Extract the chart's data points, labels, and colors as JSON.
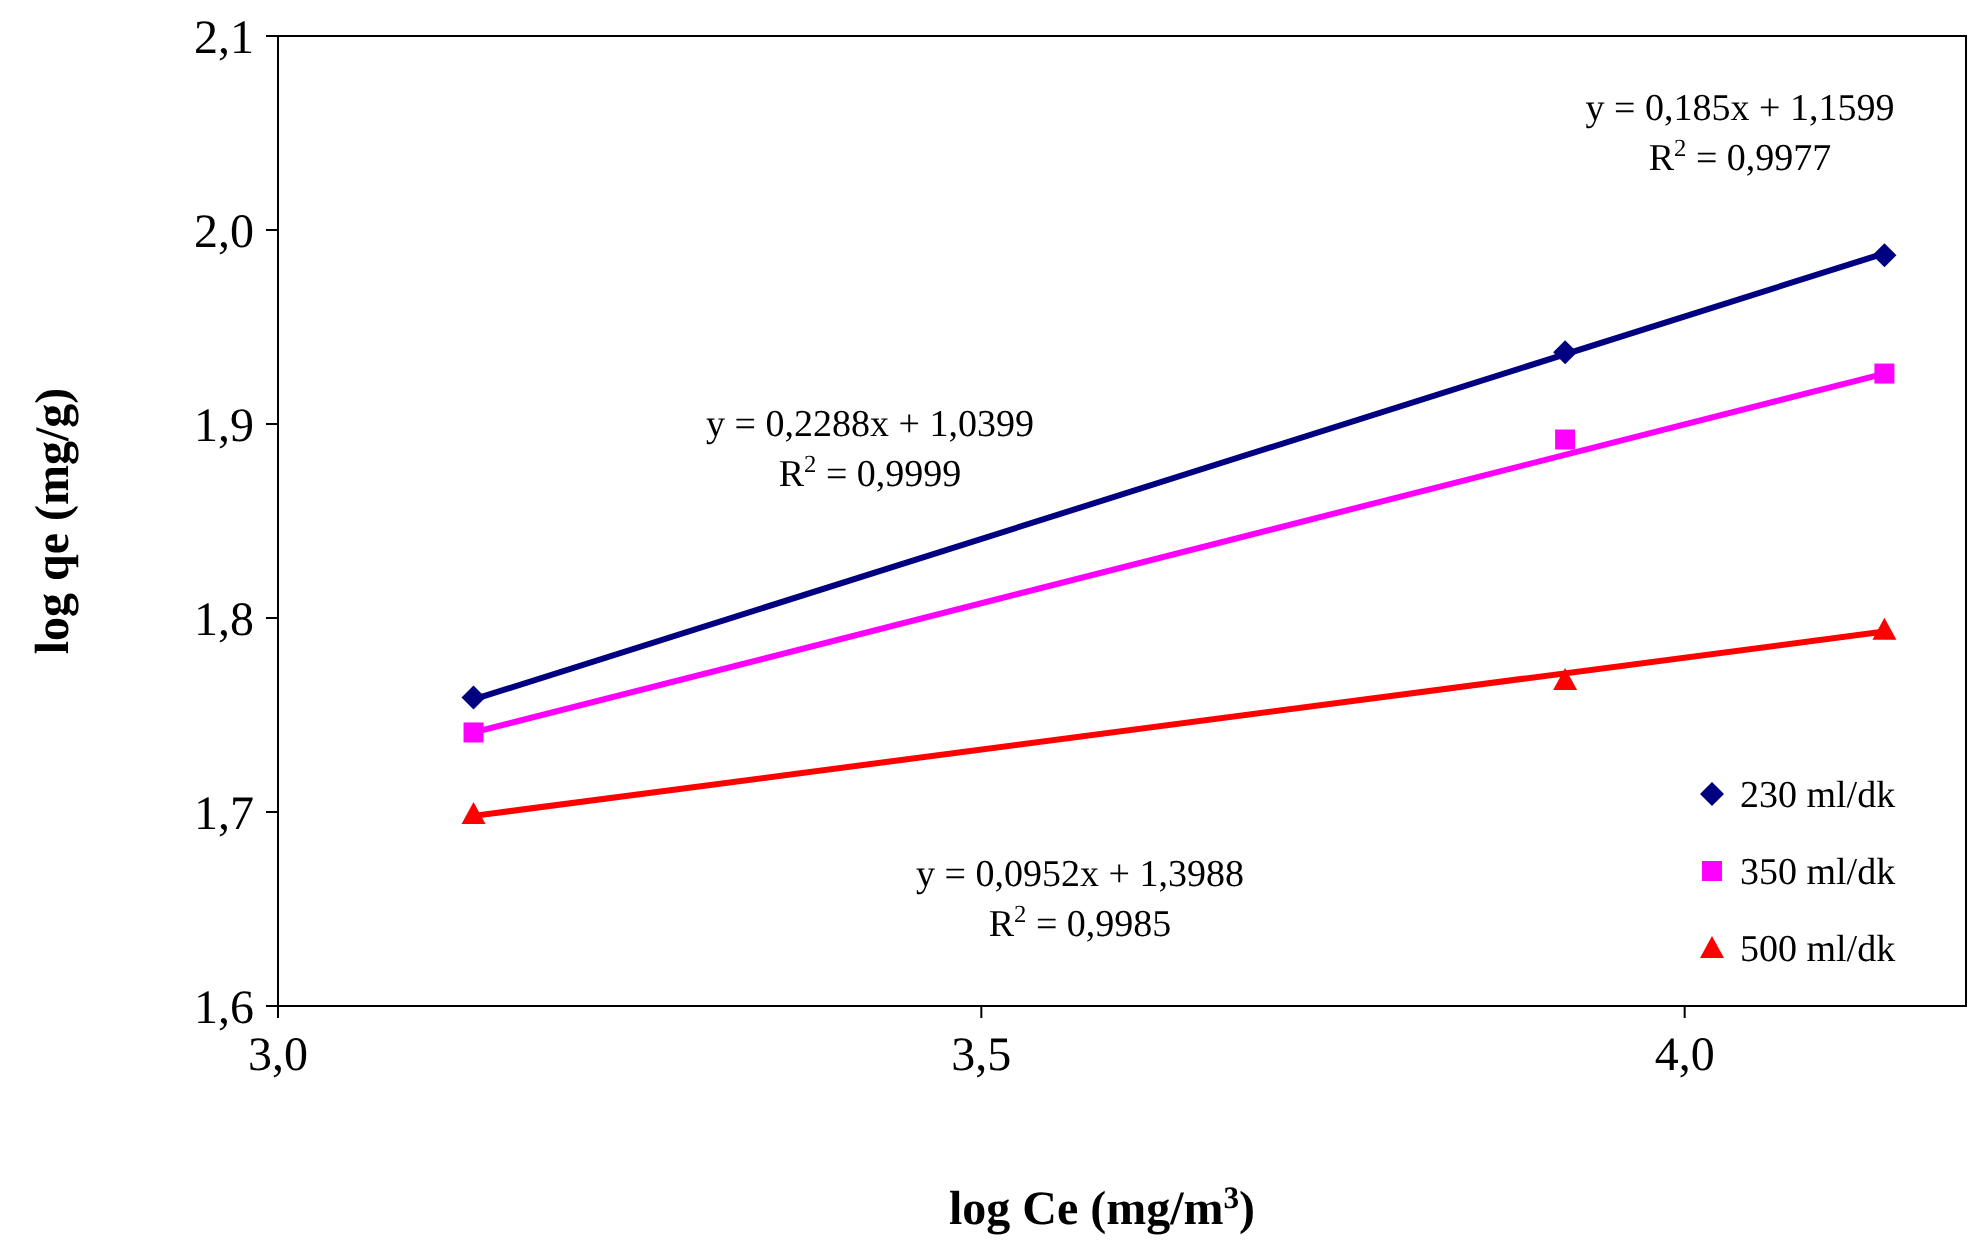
{
  "chart_data": {
    "type": "scatter",
    "xlabel": "log Ce (mg/m$^{3}$)",
    "ylabel": "log qe (mg/g)",
    "xlim": [
      3,
      4.2
    ],
    "ylim": [
      1.6,
      2.1
    ],
    "xticks": [
      {
        "value": 3,
        "label": "3,0"
      },
      {
        "value": 3.5,
        "label": "3,5"
      },
      {
        "value": 4,
        "label": "4,0"
      }
    ],
    "yticks": [
      {
        "value": 1.6,
        "label": "1,6"
      },
      {
        "value": 1.7,
        "label": "1,7"
      },
      {
        "value": 1.8,
        "label": "1,8"
      },
      {
        "value": 1.9,
        "label": "1,9"
      },
      {
        "value": 2.0,
        "label": "2,0"
      },
      {
        "value": 2.1,
        "label": "2,1"
      }
    ],
    "grid": false,
    "legend": "bottom right",
    "series": [
      {
        "type": "line",
        "color": "#000080",
        "marker": "none",
        "x": [
          3.139,
          4.142
        ],
        "values": [
          1.758,
          1.988
        ]
      },
      {
        "type": "line",
        "color": "#ff00ff",
        "marker": "none",
        "x": [
          3.139,
          4.142
        ],
        "values": [
          1.741,
          1.926
        ]
      },
      {
        "type": "line",
        "color": "#ff0000",
        "marker": "none",
        "x": [
          3.139,
          4.142
        ],
        "values": [
          1.698,
          1.793
        ]
      },
      {
        "name": "230 ml/dk",
        "color": "#000080",
        "marker": "diamond",
        "x": [
          3.139,
          3.915,
          4.142
        ],
        "values": [
          1.759,
          1.937,
          1.987
        ]
      },
      {
        "name": "350 ml/dk",
        "color": "#ff00ff",
        "marker": "square",
        "x": [
          3.139,
          3.915,
          4.142
        ],
        "values": [
          1.741,
          1.892,
          1.926
        ]
      },
      {
        "name": "500 ml/dk",
        "color": "#ff0000",
        "marker": "triangle",
        "x": [
          3.139,
          3.915,
          4.142
        ],
        "values": [
          1.699,
          1.768,
          1.794
        ]
      }
    ],
    "annotations": [
      "y = 0,185x + 1,1599\nR$^{2}$ = 0,9977",
      "y = 0,2288x + 1,0399\nR$^{2}$ = 0,9999",
      "y = 0,0952x + 1,3988\nR$^{2}$ = 0,9985"
    ]
  }
}
